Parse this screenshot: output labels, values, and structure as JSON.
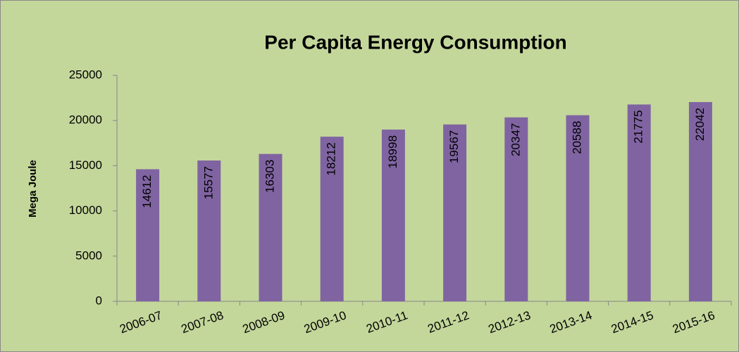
{
  "chart_data": {
    "type": "bar",
    "title": "Per Capita Energy Consumption",
    "y_label": "Mega Joule",
    "categories": [
      "2006-07",
      "2007-08",
      "2008-09",
      "2009-10",
      "2010-11",
      "2011-12",
      "2012-13",
      "2013-14",
      "2014-15",
      "2015-16"
    ],
    "values": [
      14612,
      15577,
      16303,
      18212,
      18998,
      19567,
      20347,
      20588,
      21775,
      22042
    ],
    "color": "#8064a2",
    "ylim": [
      0,
      25000
    ],
    "yticks": [
      0,
      5000,
      10000,
      15000,
      20000,
      25000
    ],
    "grid": false
  }
}
